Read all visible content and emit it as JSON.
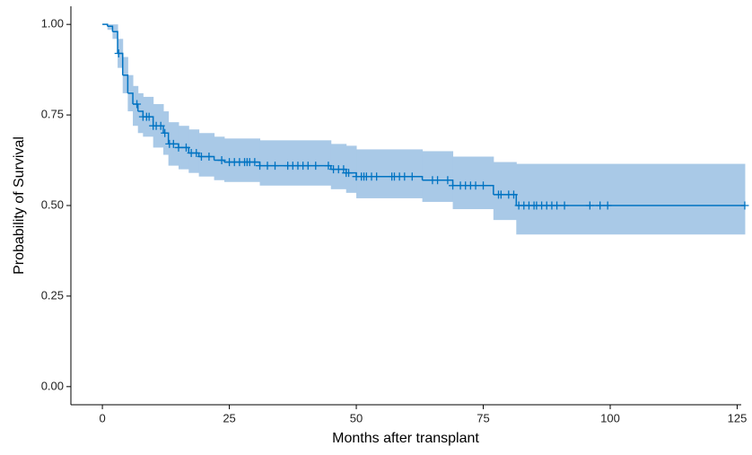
{
  "chart_data": {
    "type": "survival",
    "x_label": "Months after transplant",
    "y_label": "Probability of Survival",
    "color": "#0073c2",
    "band_color": "#a9c9e7",
    "time": [
      0,
      1,
      2,
      3,
      4,
      5,
      6,
      7,
      8,
      10,
      12,
      13,
      15,
      17,
      19,
      22,
      24,
      31,
      45,
      48,
      50,
      63,
      69,
      77,
      81.5,
      126.5
    ],
    "survival": [
      1,
      0.995,
      0.98,
      0.92,
      0.86,
      0.81,
      0.78,
      0.76,
      0.745,
      0.72,
      0.7,
      0.67,
      0.66,
      0.645,
      0.635,
      0.625,
      0.62,
      0.61,
      0.6,
      0.59,
      0.58,
      0.57,
      0.555,
      0.53,
      0.5,
      0.5
    ],
    "lower": [
      1,
      0.985,
      0.96,
      0.88,
      0.81,
      0.76,
      0.72,
      0.7,
      0.69,
      0.66,
      0.64,
      0.61,
      0.6,
      0.59,
      0.58,
      0.57,
      0.565,
      0.555,
      0.545,
      0.535,
      0.52,
      0.51,
      0.49,
      0.46,
      0.42,
      0.42
    ],
    "upper": [
      1,
      1,
      1,
      0.96,
      0.91,
      0.86,
      0.83,
      0.81,
      0.8,
      0.78,
      0.76,
      0.73,
      0.72,
      0.71,
      0.7,
      0.69,
      0.685,
      0.68,
      0.67,
      0.665,
      0.655,
      0.65,
      0.635,
      0.62,
      0.615,
      0.615
    ],
    "censor_x": [
      3.2,
      6.8,
      8,
      8.7,
      9.2,
      10,
      10.6,
      11.5,
      12.3,
      13.2,
      14,
      15,
      16.5,
      17.5,
      18.5,
      19.5,
      21,
      23.5,
      25,
      26,
      27,
      28,
      28.5,
      29,
      30,
      31,
      32.5,
      34,
      36.5,
      37.5,
      38.5,
      39.5,
      40.5,
      42,
      44.5,
      45.5,
      46.5,
      47.5,
      48,
      48.5,
      50,
      51,
      51.5,
      52,
      53,
      54,
      57,
      57.5,
      58.5,
      59.5,
      61,
      65,
      66,
      68,
      69,
      70.5,
      71.5,
      72.5,
      73.5,
      75,
      78,
      78.5,
      80,
      81,
      82,
      83,
      84,
      85,
      85.5,
      86.5,
      87.5,
      88.5,
      89.5,
      91,
      96,
      98,
      99.5,
      126.5
    ],
    "censor_y": [
      0.92,
      0.78,
      0.745,
      0.745,
      0.745,
      0.72,
      0.72,
      0.72,
      0.7,
      0.67,
      0.67,
      0.66,
      0.66,
      0.645,
      0.645,
      0.635,
      0.635,
      0.625,
      0.62,
      0.62,
      0.62,
      0.62,
      0.62,
      0.62,
      0.62,
      0.61,
      0.61,
      0.61,
      0.61,
      0.61,
      0.61,
      0.61,
      0.61,
      0.61,
      0.61,
      0.6,
      0.6,
      0.6,
      0.59,
      0.59,
      0.58,
      0.58,
      0.58,
      0.58,
      0.58,
      0.58,
      0.58,
      0.58,
      0.58,
      0.58,
      0.58,
      0.57,
      0.57,
      0.57,
      0.555,
      0.555,
      0.555,
      0.555,
      0.555,
      0.555,
      0.53,
      0.53,
      0.53,
      0.53,
      0.5,
      0.5,
      0.5,
      0.5,
      0.5,
      0.5,
      0.5,
      0.5,
      0.5,
      0.5,
      0.5,
      0.5,
      0.5,
      0.5
    ],
    "xlim": [
      -6.2,
      125.8
    ],
    "ylim": [
      -0.05,
      1.05
    ],
    "xticks": [
      0,
      25,
      50,
      75,
      100,
      125
    ],
    "yticks": [
      {
        "value": 0,
        "label": "0.00"
      },
      {
        "value": 0.25,
        "label": "0.25"
      },
      {
        "value": 0.5,
        "label": "0.50"
      },
      {
        "value": 0.75,
        "label": "0.75"
      },
      {
        "value": 1,
        "label": "1.00"
      }
    ]
  }
}
